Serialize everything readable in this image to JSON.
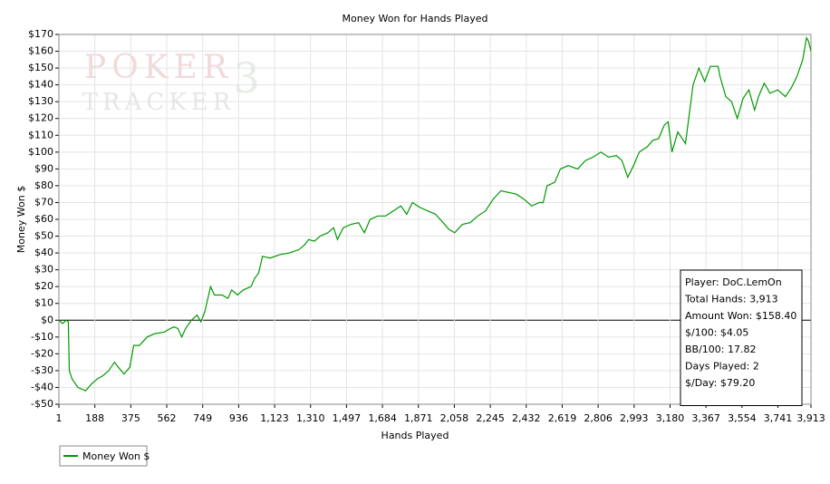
{
  "chart_data": {
    "type": "line",
    "title": "Money Won for Hands Played",
    "watermark": [
      "POKER",
      "TRACKER",
      "3"
    ],
    "x_label": "Hands Played",
    "y_label": "Money Won $",
    "xlim": [
      1,
      3913
    ],
    "xticks": [
      1,
      188,
      375,
      562,
      749,
      936,
      {
        "value": 1123,
        "label": "1,123"
      },
      {
        "value": 1310,
        "label": "1,310"
      },
      {
        "value": 1497,
        "label": "1,497"
      },
      {
        "value": 1684,
        "label": "1,684"
      },
      {
        "value": 1871,
        "label": "1,871"
      },
      {
        "value": 2058,
        "label": "2,058"
      },
      {
        "value": 2245,
        "label": "2,245"
      },
      {
        "value": 2432,
        "label": "2,432"
      },
      {
        "value": 2619,
        "label": "2,619"
      },
      {
        "value": 2806,
        "label": "2,806"
      },
      {
        "value": 2993,
        "label": "2,993"
      },
      {
        "value": 3180,
        "label": "3,180"
      },
      {
        "value": 3367,
        "label": "3,367"
      },
      {
        "value": 3554,
        "label": "3,554"
      },
      {
        "value": 3741,
        "label": "3,741"
      },
      {
        "value": 3913,
        "label": "3,913"
      }
    ],
    "ylim": [
      -50,
      170
    ],
    "yticks": [
      {
        "value": -50,
        "label": "-$50"
      },
      {
        "value": -40,
        "label": "-$40"
      },
      {
        "value": -30,
        "label": "-$30"
      },
      {
        "value": -20,
        "label": "-$20"
      },
      {
        "value": -10,
        "label": "-$10"
      },
      {
        "value": 0,
        "label": "$0"
      },
      {
        "value": 10,
        "label": "$10"
      },
      {
        "value": 20,
        "label": "$20"
      },
      {
        "value": 30,
        "label": "$30"
      },
      {
        "value": 40,
        "label": "$40"
      },
      {
        "value": 50,
        "label": "$50"
      },
      {
        "value": 60,
        "label": "$60"
      },
      {
        "value": 70,
        "label": "$70"
      },
      {
        "value": 80,
        "label": "$80"
      },
      {
        "value": 90,
        "label": "$90"
      },
      {
        "value": 100,
        "label": "$100"
      },
      {
        "value": 110,
        "label": "$110"
      },
      {
        "value": 120,
        "label": "$120"
      },
      {
        "value": 130,
        "label": "$130"
      },
      {
        "value": 140,
        "label": "$140"
      },
      {
        "value": 150,
        "label": "$150"
      },
      {
        "value": 160,
        "label": "$160"
      },
      {
        "value": 170,
        "label": "$170"
      }
    ],
    "grid": true,
    "legend": "bottom-left",
    "info_box": [
      "Player: DoC.LemOn",
      "Total Hands: 3,913",
      "Amount Won: $158.40",
      "$/100: $4.05",
      "BB/100: 17.82",
      "Days Played: 2",
      "$/Day: $79.20"
    ],
    "x": [
      1,
      20,
      40,
      50,
      55,
      70,
      100,
      140,
      170,
      200,
      230,
      260,
      290,
      310,
      340,
      370,
      390,
      420,
      460,
      500,
      550,
      580,
      600,
      620,
      640,
      660,
      690,
      720,
      740,
      760,
      790,
      810,
      850,
      880,
      900,
      930,
      960,
      1000,
      1020,
      1040,
      1060,
      1100,
      1150,
      1200,
      1250,
      1280,
      1300,
      1330,
      1360,
      1400,
      1430,
      1450,
      1480,
      1520,
      1560,
      1590,
      1620,
      1660,
      1700,
      1740,
      1780,
      1810,
      1840,
      1880,
      1920,
      1960,
      2000,
      2030,
      2060,
      2100,
      2140,
      2180,
      2220,
      2260,
      2300,
      2340,
      2380,
      2420,
      2460,
      2500,
      2520,
      2540,
      2580,
      2610,
      2650,
      2700,
      2740,
      2780,
      2820,
      2860,
      2900,
      2930,
      2960,
      2990,
      3020,
      3060,
      3090,
      3120,
      3150,
      3170,
      3190,
      3220,
      3260,
      3300,
      3330,
      3360,
      3390,
      3430,
      3440,
      3470,
      3500,
      3530,
      3560,
      3590,
      3620,
      3640,
      3670,
      3700,
      3740,
      3780,
      3810,
      3840,
      3870,
      3890,
      3900,
      3913
    ],
    "series": [
      {
        "name": "Money Won $",
        "color": "#009900",
        "values": [
          0,
          -2,
          0,
          -1,
          -30,
          -35,
          -40,
          -42,
          -38,
          -35,
          -33,
          -30,
          -25,
          -28,
          -32,
          -28,
          -15,
          -15,
          -10,
          -8,
          -7,
          -5,
          -4,
          -5,
          -10,
          -5,
          0,
          3,
          -1,
          5,
          20,
          15,
          15,
          13,
          18,
          15,
          18,
          20,
          25,
          28,
          38,
          37,
          39,
          40,
          42,
          45,
          48,
          47,
          50,
          52,
          55,
          48,
          55,
          57,
          58,
          52,
          60,
          62,
          62,
          65,
          68,
          63,
          70,
          67,
          65,
          63,
          58,
          54,
          52,
          57,
          58,
          62,
          65,
          72,
          77,
          76,
          75,
          72,
          68,
          70,
          70,
          80,
          82,
          90,
          92,
          90,
          95,
          97,
          100,
          97,
          98,
          95,
          85,
          92,
          100,
          103,
          107,
          108,
          116,
          118,
          100,
          112,
          105,
          140,
          150,
          142,
          151,
          151,
          145,
          133,
          130,
          120,
          132,
          137,
          125,
          133,
          141,
          135,
          137,
          133,
          138,
          145,
          155,
          168,
          166,
          160
        ]
      }
    ]
  }
}
